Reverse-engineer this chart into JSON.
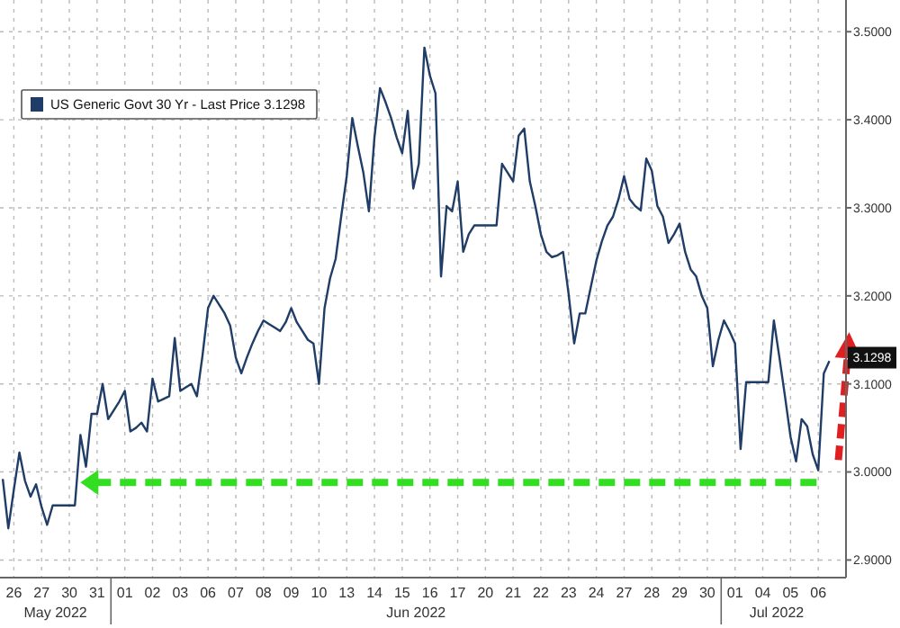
{
  "chart_data": {
    "type": "line",
    "legend": "top left",
    "grid": true,
    "marker": "none",
    "line_style": "solid",
    "categories": [
      null,
      null,
      "26",
      null,
      null,
      null,
      null,
      "27",
      null,
      null,
      null,
      null,
      "30",
      null,
      null,
      null,
      null,
      "31",
      null,
      null,
      null,
      null,
      "01",
      null,
      null,
      null,
      null,
      "02",
      null,
      null,
      null,
      null,
      "03",
      null,
      null,
      null,
      null,
      "06",
      null,
      null,
      null,
      null,
      "07",
      null,
      null,
      null,
      null,
      "08",
      null,
      null,
      null,
      null,
      "09",
      null,
      null,
      null,
      null,
      "10",
      null,
      null,
      null,
      null,
      "13",
      null,
      null,
      null,
      null,
      "14",
      null,
      null,
      null,
      null,
      "15",
      null,
      null,
      null,
      null,
      "16",
      null,
      null,
      null,
      null,
      "17",
      null,
      null,
      null,
      null,
      "20",
      null,
      null,
      null,
      null,
      "21",
      null,
      null,
      null,
      null,
      "22",
      null,
      null,
      null,
      null,
      "23",
      null,
      null,
      null,
      null,
      "24",
      null,
      null,
      null,
      null,
      "27",
      null,
      null,
      null,
      null,
      "28",
      null,
      null,
      null,
      null,
      "29",
      null,
      null,
      null,
      null,
      "30",
      null,
      null,
      null,
      null,
      "01",
      null,
      null,
      null,
      null,
      "04",
      null,
      null,
      null,
      null,
      "05",
      null,
      null,
      null,
      null,
      "06",
      null,
      null
    ],
    "ylim": [
      2.88,
      3.536
    ],
    "yticks": [
      {
        "value": 2.9,
        "label": "2.9000"
      },
      {
        "value": 3.0,
        "label": "3.0000"
      },
      {
        "value": 3.1,
        "label": "3.1000"
      },
      {
        "value": 3.2,
        "label": "3.2000"
      },
      {
        "value": 3.3,
        "label": "3.3000"
      },
      {
        "value": 3.4,
        "label": "3.4000"
      },
      {
        "value": 3.5,
        "label": "3.5000"
      }
    ],
    "ref_lines": [
      {
        "axis": "y",
        "value": 2.988,
        "color": "#33dd22",
        "line_style": "dashed"
      }
    ],
    "annotations": [
      "May 2022",
      "Jun 2022",
      "Jul 2022",
      {
        "text": "3.1298",
        "y": 3.1298
      }
    ],
    "series": [
      {
        "name": "US Generic Govt 30 Yr - Last Price 3.1298",
        "color": "#1f3d66",
        "values": [
          2.992,
          2.936,
          2.98,
          3.022,
          2.99,
          2.972,
          2.986,
          2.96,
          2.94,
          2.962,
          2.962,
          2.962,
          2.962,
          2.962,
          3.042,
          3.006,
          3.066,
          3.066,
          3.1,
          3.06,
          3.07,
          3.08,
          3.092,
          3.046,
          3.05,
          3.056,
          3.046,
          3.106,
          3.08,
          3.083,
          3.086,
          3.152,
          3.092,
          3.096,
          3.1,
          3.086,
          3.132,
          3.186,
          3.2,
          3.19,
          3.18,
          3.166,
          3.13,
          3.112,
          3.13,
          3.146,
          3.16,
          3.172,
          3.168,
          3.164,
          3.16,
          3.17,
          3.186,
          3.17,
          3.16,
          3.15,
          3.146,
          3.1,
          3.186,
          3.22,
          3.242,
          3.29,
          3.336,
          3.402,
          3.37,
          3.34,
          3.296,
          3.38,
          3.436,
          3.42,
          3.402,
          3.38,
          3.362,
          3.41,
          3.322,
          3.35,
          3.482,
          3.45,
          3.43,
          3.222,
          3.302,
          3.296,
          3.33,
          3.25,
          3.27,
          3.28,
          3.28,
          3.28,
          3.28,
          3.28,
          3.35,
          3.34,
          3.33,
          3.382,
          3.39,
          3.33,
          3.302,
          3.27,
          3.25,
          3.244,
          3.246,
          3.25,
          3.202,
          3.146,
          3.18,
          3.18,
          3.21,
          3.24,
          3.262,
          3.28,
          3.29,
          3.31,
          3.336,
          3.31,
          3.302,
          3.297,
          3.356,
          3.342,
          3.302,
          3.29,
          3.26,
          3.27,
          3.282,
          3.25,
          3.23,
          3.222,
          3.2,
          3.186,
          3.12,
          3.15,
          3.172,
          3.16,
          3.146,
          3.026,
          3.102,
          3.102,
          3.102,
          3.102,
          3.102,
          3.172,
          3.13,
          3.086,
          3.04,
          3.012,
          3.06,
          3.052,
          3.02,
          3.002,
          3.112,
          3.126
        ]
      }
    ]
  }
}
